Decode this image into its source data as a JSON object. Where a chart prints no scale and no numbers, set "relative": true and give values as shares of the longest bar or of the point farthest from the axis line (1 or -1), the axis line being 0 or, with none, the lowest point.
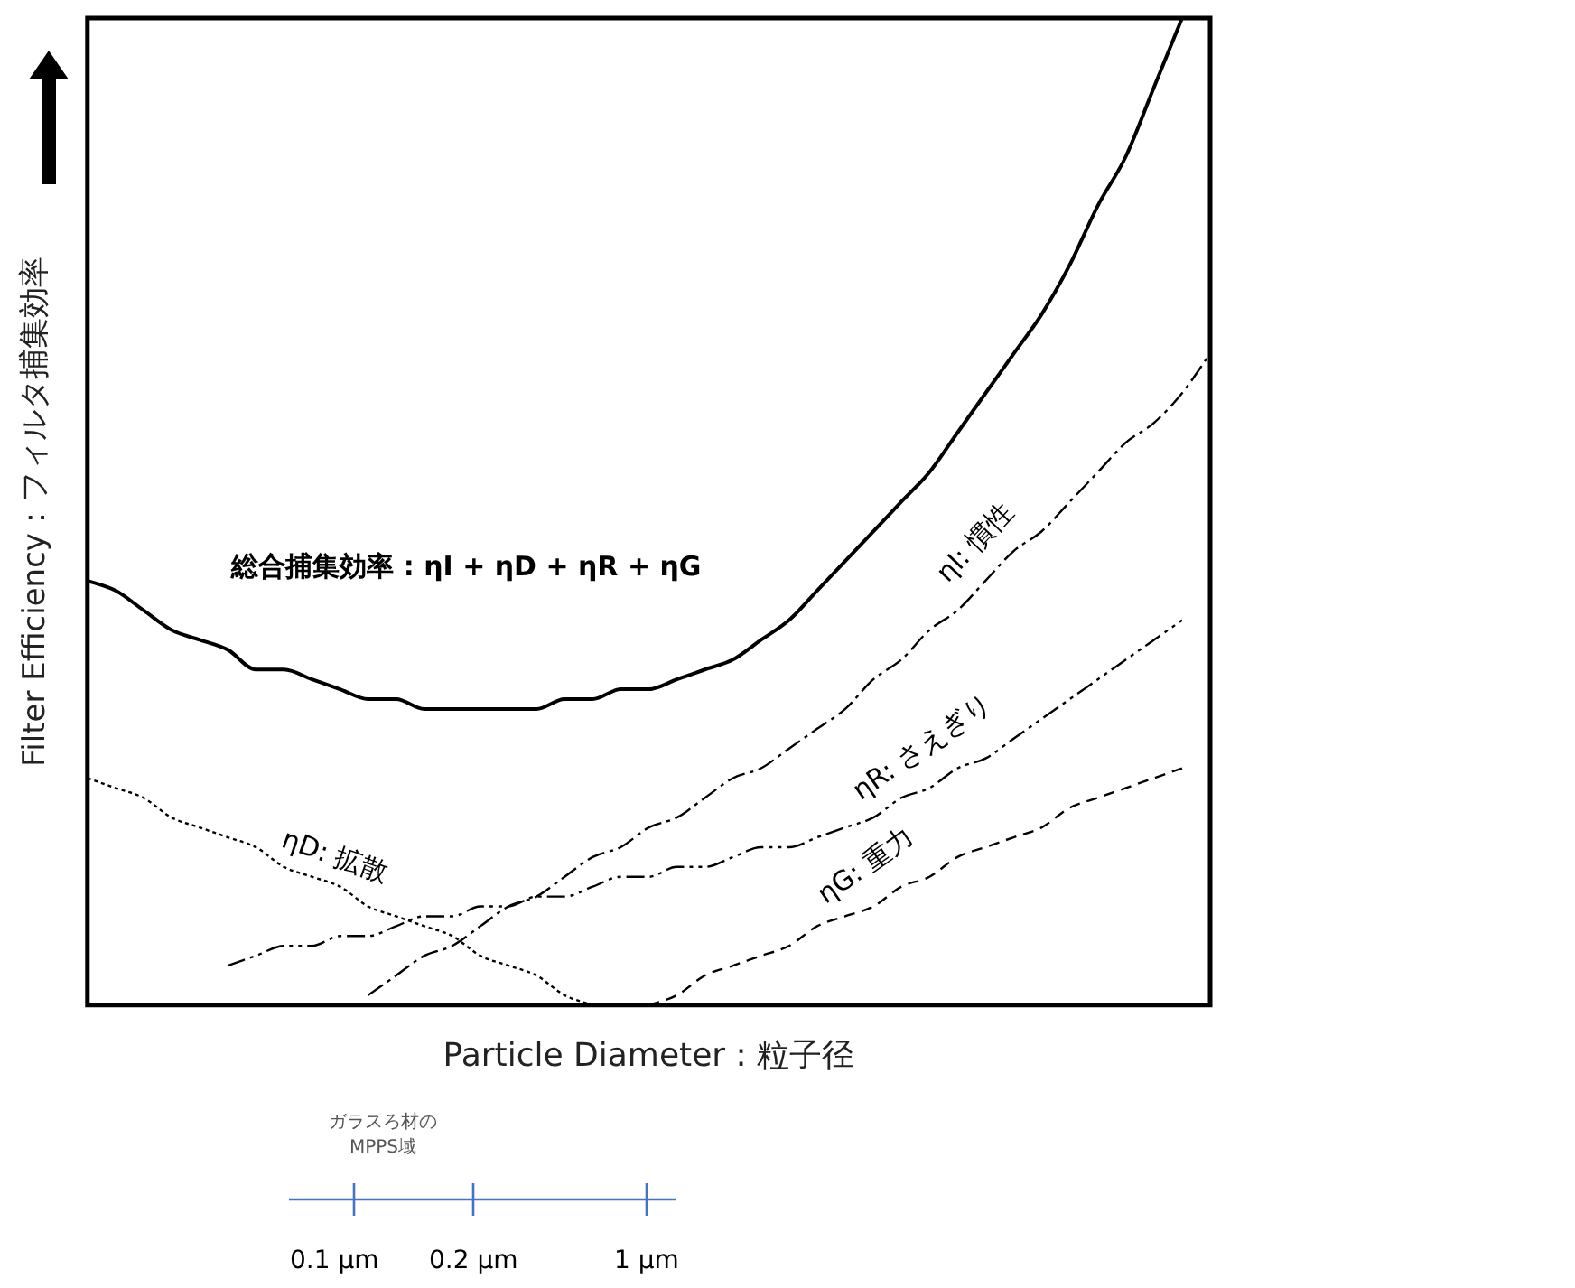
{
  "chart_data": {
    "type": "line",
    "relative": true,
    "tick_labels": false,
    "xlabel": "Particle Diameter : 粒子径",
    "ylabel": "Filter Efficiency：フィルタ捕集効率",
    "categories": [
      null,
      null,
      null,
      null,
      null,
      null,
      null,
      null,
      null,
      null,
      null,
      null,
      null,
      null,
      null,
      null,
      null,
      null,
      null,
      null,
      null,
      null,
      null,
      null,
      null,
      null,
      null,
      null,
      null,
      null,
      null,
      null,
      null,
      null,
      null,
      null,
      null,
      null,
      null,
      null,
      null
    ],
    "series": [
      {
        "name": "総合捕集効率 : ηI + ηD + ηR + ηG",
        "color": "#000000",
        "line_style": "solid",
        "values": [
          0.43,
          0.42,
          0.4,
          0.38,
          0.37,
          0.36,
          0.34,
          0.34,
          0.33,
          0.32,
          0.31,
          0.31,
          0.3,
          0.3,
          0.3,
          0.3,
          0.3,
          0.31,
          0.31,
          0.32,
          0.32,
          0.33,
          0.34,
          0.35,
          0.37,
          0.39,
          0.42,
          0.45,
          0.48,
          0.51,
          0.54,
          0.58,
          0.62,
          0.66,
          0.7,
          0.75,
          0.81,
          0.86,
          0.93,
          1,
          null
        ]
      },
      {
        "name": "ηD: 拡散",
        "color": "#000000",
        "line_style": "dotted",
        "values": [
          0.23,
          0.22,
          0.21,
          0.19,
          0.18,
          0.17,
          0.16,
          0.14,
          0.13,
          0.12,
          0.1,
          0.09,
          0.08,
          0.07,
          0.05,
          0.04,
          0.03,
          0.01,
          0.0,
          null,
          null,
          null,
          null,
          null,
          null,
          null,
          null,
          null,
          null,
          null,
          null,
          null,
          null,
          null,
          null,
          null,
          null,
          null,
          null,
          null,
          null
        ]
      },
      {
        "name": "ηI: 慣性",
        "color": "#000000",
        "line_style": "dashdot",
        "values": [
          null,
          null,
          null,
          null,
          null,
          null,
          null,
          null,
          null,
          null,
          0.01,
          0.03,
          0.05,
          0.06,
          0.08,
          0.1,
          0.11,
          0.13,
          0.15,
          0.16,
          0.18,
          0.19,
          0.21,
          0.23,
          0.24,
          0.26,
          0.28,
          0.3,
          0.33,
          0.35,
          0.38,
          0.4,
          0.43,
          0.46,
          0.48,
          0.51,
          0.54,
          0.57,
          0.59,
          0.62,
          0.66
        ]
      },
      {
        "name": "ηR: さえぎり",
        "color": "#000000",
        "line_style": "dashdotdot",
        "values": [
          null,
          null,
          null,
          null,
          null,
          0.04,
          0.05,
          0.06,
          0.06,
          0.07,
          0.07,
          0.08,
          0.09,
          0.09,
          0.1,
          0.1,
          0.11,
          0.11,
          0.12,
          0.13,
          0.13,
          0.14,
          0.14,
          0.15,
          0.16,
          0.16,
          0.17,
          0.18,
          0.19,
          0.21,
          0.22,
          0.24,
          0.25,
          0.27,
          0.29,
          0.31,
          0.33,
          0.35,
          0.37,
          0.39,
          null
        ]
      },
      {
        "name": "ηG: 重力",
        "color": "#000000",
        "line_style": "dashed",
        "values": [
          null,
          null,
          null,
          null,
          null,
          null,
          null,
          null,
          null,
          null,
          null,
          null,
          null,
          null,
          null,
          null,
          null,
          null,
          null,
          null,
          0.0,
          0.01,
          0.03,
          0.04,
          0.05,
          0.06,
          0.08,
          0.09,
          0.1,
          0.12,
          0.13,
          0.15,
          0.16,
          0.17,
          0.18,
          0.2,
          0.21,
          0.22,
          0.23,
          0.24,
          null
        ]
      }
    ],
    "annotations": [
      "ガラスろ材の\nMPPS域",
      "0.1 µm",
      "0.2 µm",
      "1 µm"
    ]
  }
}
